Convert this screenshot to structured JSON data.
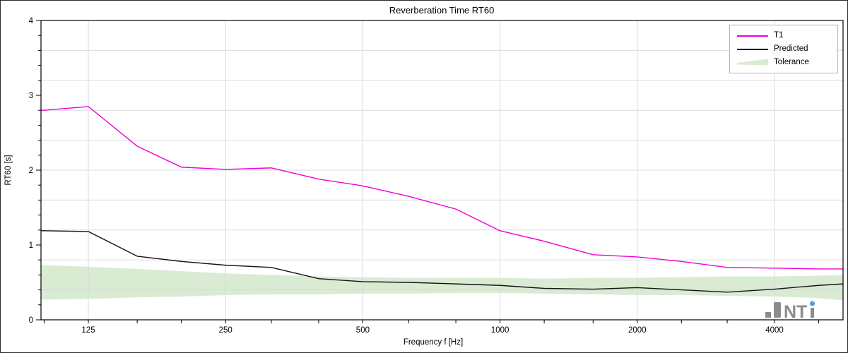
{
  "window": {
    "background": "#ffffff",
    "frame_color": "#000000",
    "gridline_color": "#d4d4e2"
  },
  "legend": {
    "items": [
      {
        "label": "T1",
        "type": "line",
        "color": "#ef00d7"
      },
      {
        "label": "Predicted",
        "type": "line",
        "color": "#141414"
      },
      {
        "label": "Tolerance",
        "type": "band",
        "color": "#d9ecd3"
      }
    ]
  },
  "logo": {
    "text_nt": "NT",
    "text_i_dot": "i",
    "gray": "#8c8c8c",
    "blue": "#55a0d3"
  },
  "chart_data": {
    "type": "line",
    "title": "Reverberation Time RT60",
    "xlabel": "Frequency f [Hz]",
    "ylabel": "RT60 [s]",
    "x_scale": "log",
    "grid": true,
    "legend_position": "top-right",
    "ylim": [
      0,
      4
    ],
    "y_major_ticks": [
      0,
      1,
      2,
      3,
      4
    ],
    "y_minor_tick_step": 0.2,
    "y_gridline_step": 0.4,
    "xlim_hz": [
      98.5,
      5655
    ],
    "x_labeled_ticks_hz": [
      125,
      250,
      500,
      1000,
      2000,
      4000
    ],
    "x_minor_ticks_hz": [
      100,
      125,
      160,
      200,
      250,
      315,
      400,
      500,
      630,
      800,
      1000,
      1250,
      1600,
      2000,
      2500,
      3150,
      4000,
      5000
    ],
    "frequencies_hz": [
      100,
      125,
      160,
      200,
      250,
      315,
      400,
      500,
      630,
      800,
      1000,
      1250,
      1600,
      2000,
      2500,
      3150,
      4000,
      5000
    ],
    "series": [
      {
        "name": "T1",
        "color": "#ef00d7",
        "values": [
          2.8,
          2.85,
          2.32,
          2.04,
          2.01,
          2.03,
          1.88,
          1.79,
          1.65,
          1.48,
          1.19,
          1.05,
          0.87,
          0.84,
          0.78,
          0.7,
          0.69,
          0.68
        ]
      },
      {
        "name": "Predicted",
        "color": "#141414",
        "values": [
          1.19,
          1.18,
          0.85,
          0.78,
          0.73,
          0.7,
          0.55,
          0.51,
          0.5,
          0.48,
          0.46,
          0.42,
          0.41,
          0.43,
          0.4,
          0.37,
          0.41,
          0.46
        ]
      }
    ],
    "tolerance_band": {
      "name": "Tolerance",
      "color": "#d9ecd3",
      "upper": [
        0.73,
        0.71,
        0.68,
        0.65,
        0.62,
        0.6,
        0.58,
        0.57,
        0.56,
        0.56,
        0.56,
        0.55,
        0.56,
        0.56,
        0.57,
        0.58,
        0.58,
        0.59
      ],
      "lower": [
        0.27,
        0.28,
        0.3,
        0.31,
        0.33,
        0.34,
        0.34,
        0.35,
        0.35,
        0.36,
        0.36,
        0.35,
        0.34,
        0.33,
        0.33,
        0.32,
        0.31,
        0.29
      ]
    },
    "edge_extension": {
      "left_hz": 98.5,
      "right_hz": 5655,
      "T1": [
        2.8,
        0.68
      ],
      "Predicted": [
        1.19,
        0.48
      ],
      "upper": [
        0.735,
        0.6
      ],
      "lower": [
        0.27,
        0.26
      ]
    }
  }
}
